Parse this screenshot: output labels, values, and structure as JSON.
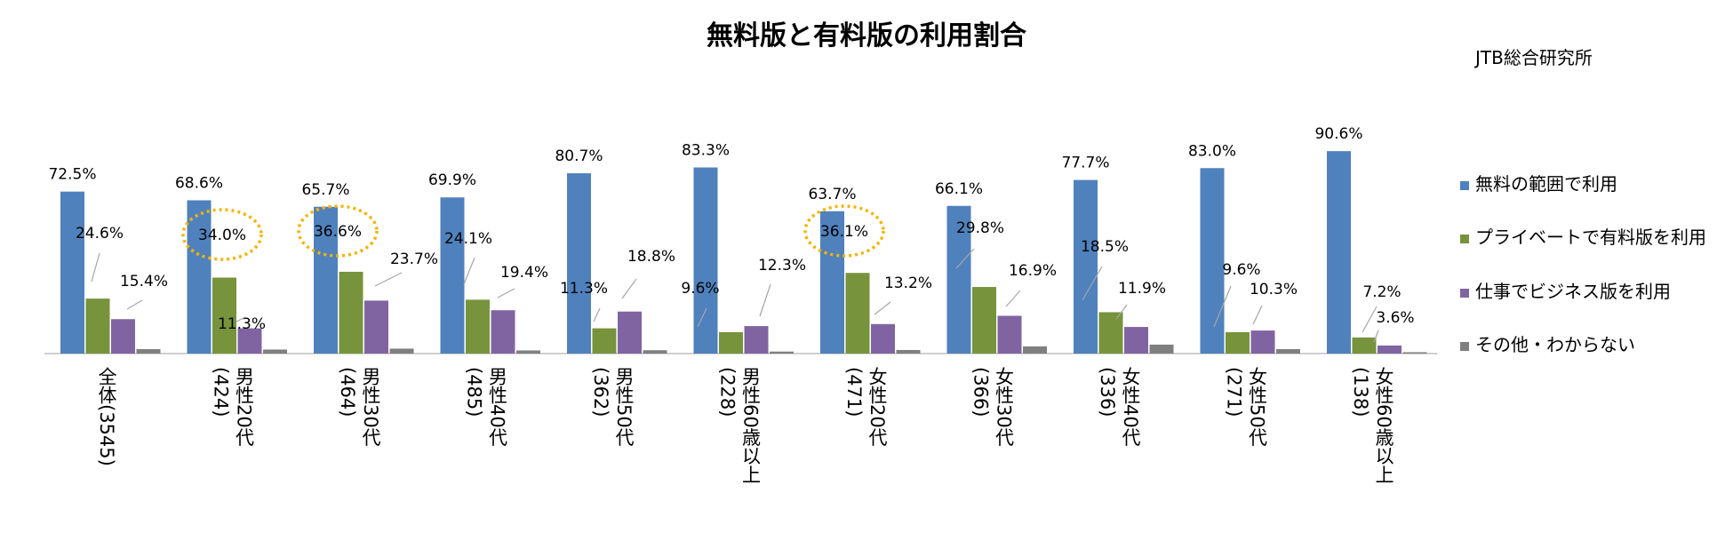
{
  "source_note": "JTB総合研究所",
  "chart_data": {
    "type": "bar",
    "title": "無料版と有料版の利用割合",
    "xlabel": "",
    "ylabel": "",
    "ylim": [
      0,
      100
    ],
    "grid": false,
    "legend_position": "right",
    "categories": [
      "全体(3545)",
      "男性20代(424)",
      "男性30代(464)",
      "男性40代(485)",
      "男性50代(362)",
      "男性60歳以上(228)",
      "女性20代(471)",
      "女性30代(366)",
      "女性40代(336)",
      "女性50代(271)",
      "女性60歳以上(138)"
    ],
    "series": [
      {
        "name": "無料の範囲で利用",
        "color": "#4f81bd",
        "values": [
          72.5,
          68.6,
          65.7,
          69.9,
          80.7,
          83.3,
          63.7,
          66.1,
          77.7,
          83.0,
          90.6
        ],
        "labels": [
          "72.5%",
          "68.6%",
          "65.7%",
          "69.9%",
          "80.7%",
          "83.3%",
          "63.7%",
          "66.1%",
          "77.7%",
          "83.0%",
          "90.6%"
        ]
      },
      {
        "name": "プライベートで有料版を利用",
        "color": "#77933c",
        "values": [
          24.6,
          34.0,
          36.6,
          24.1,
          11.3,
          9.6,
          36.1,
          29.8,
          18.5,
          9.6,
          7.2
        ],
        "labels": [
          "24.6%",
          "34.0%",
          "36.6%",
          "24.1%",
          "11.3%",
          "9.6%",
          "36.1%",
          "29.8%",
          "18.5%",
          "9.6%",
          "7.2%"
        ]
      },
      {
        "name": "仕事でビジネス版を利用",
        "color": "#8064a2",
        "values": [
          15.4,
          11.3,
          23.7,
          19.4,
          18.8,
          12.3,
          13.2,
          16.9,
          11.9,
          10.3,
          3.6
        ],
        "labels": [
          "15.4%",
          "11.3%",
          "23.7%",
          "19.4%",
          "18.8%",
          "12.3%",
          "13.2%",
          "16.9%",
          "11.9%",
          "10.3%",
          "3.6%"
        ]
      },
      {
        "name": "その他・わからない",
        "color": "#7f7f7f",
        "values": [
          2.0,
          1.8,
          2.2,
          1.4,
          1.5,
          0.9,
          1.6,
          3.2,
          4.0,
          2.0,
          0.6
        ]
      }
    ],
    "highlighted": [
      "男性20代(424)",
      "男性30代(464)",
      "女性20代(471)"
    ],
    "highlight_color": "#f5b400"
  }
}
